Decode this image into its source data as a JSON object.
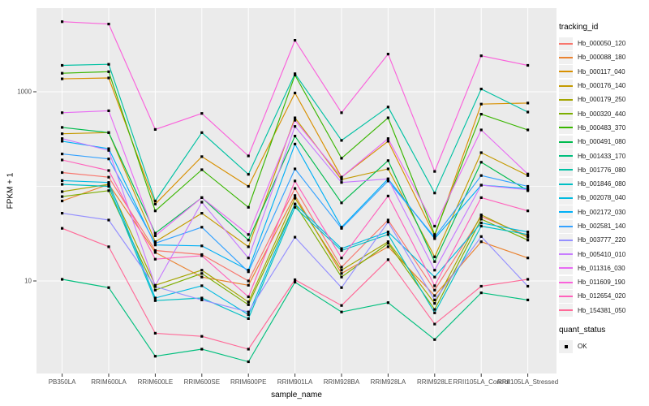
{
  "chart_data": {
    "type": "line",
    "title": "",
    "xlabel": "sample_name",
    "ylabel": "FPKM + 1",
    "y_scale": "log10",
    "y_tick_labels": [
      "10",
      "1000"
    ],
    "y_major_gridlines": [
      10,
      1000
    ],
    "y_minor_gridlines": [
      100
    ],
    "ylim": [
      1,
      7000
    ],
    "legend_titles": {
      "series": "tracking_id",
      "shape": "quant_status"
    },
    "shape_legend": [
      {
        "label": "OK",
        "marker": "black-square"
      }
    ],
    "marker_color": "#000000",
    "panel_background": "#EBEBEB",
    "gridline_color": "#FFFFFF",
    "tick_label_color": "#4D4D4D",
    "categories": [
      "PB350LA",
      "RRIM600LA",
      "RRIM600LE",
      "RRIM600SE",
      "RRIM600PE",
      "RRIM901LA",
      "RRIM928BA",
      "RRIM928LA",
      "RRIM928LE",
      "RRII105LA_Control",
      "RRII105LA_Stressed"
    ],
    "series": [
      {
        "name": "Hb_000050_120",
        "color": "#F8766D",
        "values": [
          140,
          125,
          21,
          19,
          10,
          95,
          14,
          44,
          8,
          48,
          30
        ]
      },
      {
        "name": "Hb_000088_180",
        "color": "#EA8331",
        "values": [
          70,
          105,
          20,
          11,
          9,
          80,
          12,
          23,
          7,
          26,
          17.5
        ]
      },
      {
        "name": "Hb_000117_040",
        "color": "#D89000",
        "values": [
          1370,
          1400,
          65,
          206,
          100,
          970,
          125,
          300,
          30,
          740,
          760
        ]
      },
      {
        "name": "Hb_000176_140",
        "color": "#C49A00",
        "values": [
          360,
          370,
          26,
          52,
          23,
          530,
          118,
          153,
          18,
          227,
          130
        ]
      },
      {
        "name": "Hb_000179_250",
        "color": "#A3A500",
        "values": [
          88,
          105,
          9,
          13,
          6,
          75,
          13,
          26,
          5.8,
          50,
          29
        ]
      },
      {
        "name": "Hb_000320_440",
        "color": "#7CAE00",
        "values": [
          78,
          90,
          8,
          12,
          5.6,
          65,
          11,
          25,
          5,
          45,
          27
        ]
      },
      {
        "name": "Hb_000483_370",
        "color": "#39B600",
        "values": [
          1570,
          1630,
          55,
          150,
          60,
          1500,
          198,
          530,
          31,
          580,
          395
        ]
      },
      {
        "name": "Hb_000491_080",
        "color": "#00BB4E",
        "values": [
          420,
          370,
          32,
          76,
          27,
          340,
          67,
          187,
          16,
          180,
          90
        ]
      },
      {
        "name": "Hb_001433_170",
        "color": "#00BF7D",
        "values": [
          10.4,
          8.5,
          1.6,
          1.9,
          1.4,
          9.7,
          4.7,
          5.9,
          2.4,
          7.5,
          6.3
        ]
      },
      {
        "name": "Hb_001776_080",
        "color": "#00C1A3",
        "values": [
          1900,
          1950,
          70,
          370,
          134,
          1550,
          306,
          690,
          85,
          1070,
          610
        ]
      },
      {
        "name": "Hb_001846_080",
        "color": "#00BFC4",
        "values": [
          105,
          100,
          6.2,
          6.6,
          4,
          60,
          21,
          31,
          4.6,
          38,
          31
        ]
      },
      {
        "name": "Hb_002078_040",
        "color": "#00BAE0",
        "values": [
          115,
          110,
          6.6,
          8.9,
          4.4,
          65,
          22,
          33,
          11,
          41,
          33
        ]
      },
      {
        "name": "Hb_002172_030",
        "color": "#00B0F6",
        "values": [
          300,
          250,
          24,
          23.5,
          13,
          280,
          37,
          120,
          28,
          103,
          95
        ]
      },
      {
        "name": "Hb_002581_140",
        "color": "#35A2FF",
        "values": [
          220,
          195,
          25,
          37,
          12.5,
          153,
          36,
          114,
          29,
          130,
          100
        ]
      },
      {
        "name": "Hb_003777_220",
        "color": "#9590FF",
        "values": [
          52,
          44,
          8.7,
          6.3,
          4.7,
          29,
          8.5,
          42,
          6.3,
          29.5,
          8.8
        ]
      },
      {
        "name": "Hb_005410_010",
        "color": "#C77CFF",
        "values": [
          320,
          240,
          8.9,
          68,
          17.5,
          430,
          110,
          120,
          13,
          103,
          92
        ]
      },
      {
        "name": "Hb_011316_030",
        "color": "#E76BF3",
        "values": [
          600,
          630,
          30,
          76,
          31,
          500,
          125,
          320,
          38,
          395,
          135
        ]
      },
      {
        "name": "Hb_011609_190",
        "color": "#FA62DB",
        "values": [
          5500,
          5200,
          400,
          590,
          210,
          3500,
          600,
          2500,
          144,
          2400,
          1900
        ]
      },
      {
        "name": "Hb_012654_020",
        "color": "#FF62BC",
        "values": [
          190,
          147,
          17,
          18.5,
          6.8,
          114,
          17.5,
          79,
          8.9,
          76,
          55
        ]
      },
      {
        "name": "Hb_154381_050",
        "color": "#FF6A98",
        "values": [
          36,
          23,
          2.8,
          2.6,
          1.9,
          10.3,
          5.5,
          16.8,
          3.5,
          8.8,
          10.4
        ]
      }
    ]
  }
}
